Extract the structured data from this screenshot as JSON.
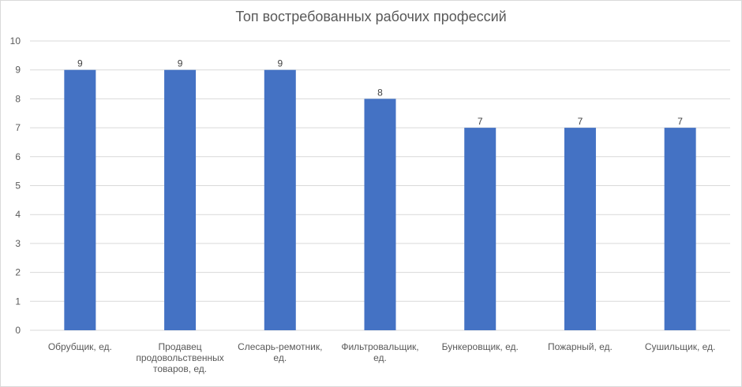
{
  "chart_data": {
    "type": "bar",
    "title": "Топ востребованных рабочих профессий",
    "categories": [
      "Обрубщик, ед.",
      "Продавец продовольственных товаров, ед.",
      "Слесарь-ремотник, ед.",
      "Фильтровальщик, ед.",
      "Бункеровщик, ед.",
      "Пожарный, ед.",
      "Сушильщик, ед."
    ],
    "category_lines": [
      [
        "Обрубщик, ед."
      ],
      [
        "Продавец",
        "продовольственных",
        "товаров, ед."
      ],
      [
        "Слесарь-ремотник,",
        "ед."
      ],
      [
        "Фильтровальщик,",
        "ед."
      ],
      [
        "Бункеровщик, ед."
      ],
      [
        "Пожарный, ед."
      ],
      [
        "Сушильщик, ед."
      ]
    ],
    "values": [
      9,
      9,
      9,
      8,
      7,
      7,
      7
    ],
    "ylim": [
      0,
      10
    ],
    "yticks": [
      0,
      1,
      2,
      3,
      4,
      5,
      6,
      7,
      8,
      9,
      10
    ],
    "grid": true,
    "data_labels": true,
    "bar_color": "#4472c4",
    "grid_color": "#d9d9d9"
  }
}
